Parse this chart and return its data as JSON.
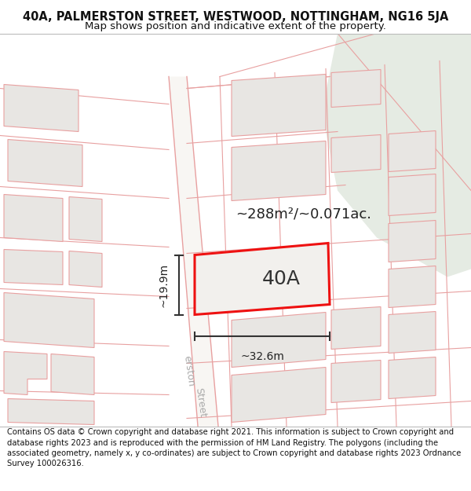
{
  "title_line1": "40A, PALMERSTON STREET, WESTWOOD, NOTTINGHAM, NG16 5JA",
  "title_line2": "Map shows position and indicative extent of the property.",
  "area_text": "~288m²/~0.071ac.",
  "label_40A": "40A",
  "dim_width": "~32.6m",
  "dim_height": "~19.9m",
  "street_label_top": "erston",
  "street_label_bot": "Street",
  "footer": "Contains OS data © Crown copyright and database right 2021. This information is subject to Crown copyright and database rights 2023 and is reproduced with the permission of HM Land Registry. The polygons (including the associated geometry, namely x, y co-ordinates) are subject to Crown copyright and database rights 2023 Ordnance Survey 100026316.",
  "map_bg": "#f2f0ed",
  "green_area_color": "#e5ebe3",
  "building_fill": "#e8e6e3",
  "building_stroke": "#e8a0a0",
  "road_color": "#f8f6f3",
  "road_stroke": "#e8a0a0",
  "property_stroke": "#ee1111",
  "property_fill": "#f2f0ed",
  "dim_line_color": "#333333",
  "title_fontsize": 10.5,
  "subtitle_fontsize": 9.5,
  "footer_fontsize": 7.2,
  "label_40A_fontsize": 18,
  "area_fontsize": 13,
  "dim_fontsize": 10
}
